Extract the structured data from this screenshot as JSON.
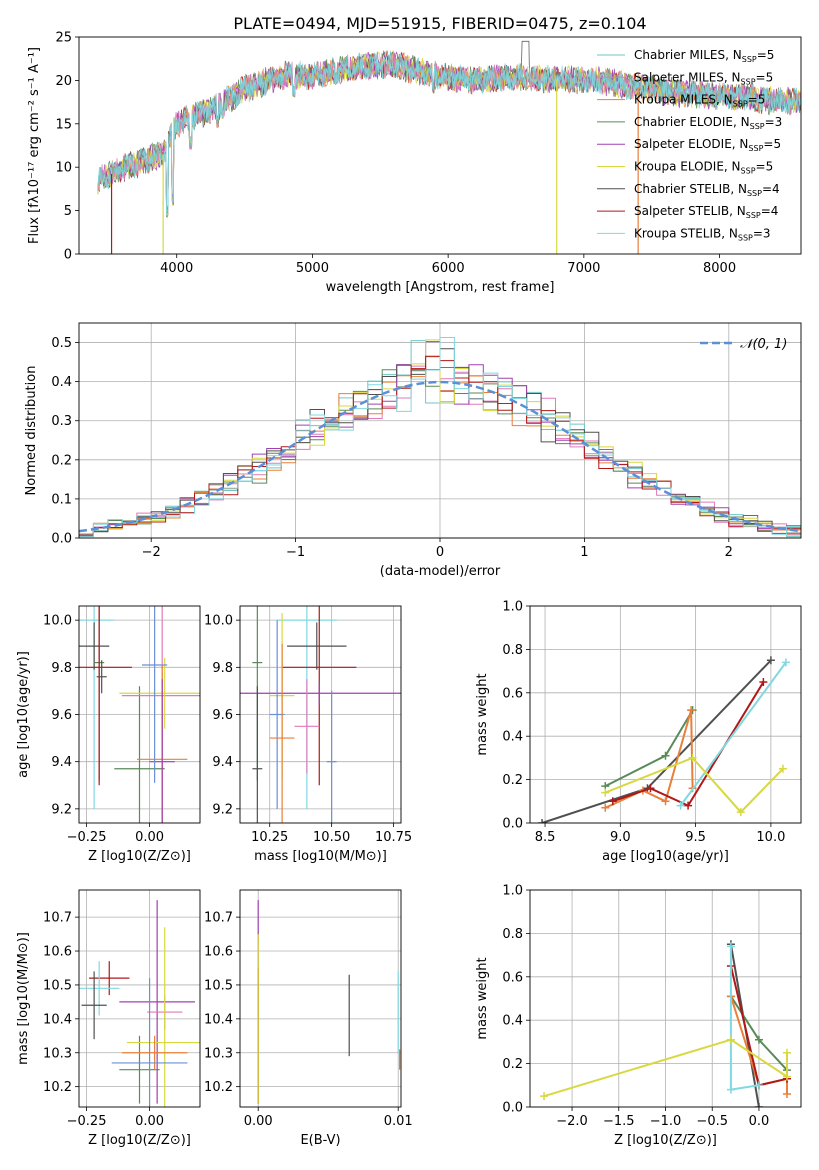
{
  "figure_title": "PLATE=0494, MJD=51915, FIBERID=0475, z=0.104",
  "colors": {
    "C1": "#6ec6c6",
    "C2": "#e07ab8",
    "C3": "#e8803a",
    "C4": "#5a8a5a",
    "C5": "#a040b0",
    "C6": "#d8d840",
    "C7": "#505050",
    "C8": "#b01818",
    "C9": "#80d8e0",
    "gauss": "#5b8fd8",
    "blue": "#6a8fd8"
  },
  "legend": [
    {
      "label": "Chabrier MILES, N",
      "sub": "SSP",
      "suffix": "=5",
      "color": "C1"
    },
    {
      "label": "Salpeter MILES, N",
      "sub": "SSP",
      "suffix": "=5",
      "color": "C2"
    },
    {
      "label": "Kroupa MILES, N",
      "sub": "SSP",
      "suffix": "=5",
      "color": "C3"
    },
    {
      "label": "Chabrier ELODIE, N",
      "sub": "SSP",
      "suffix": "=3",
      "color": "C4"
    },
    {
      "label": "Salpeter ELODIE, N",
      "sub": "SSP",
      "suffix": "=5",
      "color": "C5"
    },
    {
      "label": "Kroupa ELODIE, N",
      "sub": "SSP",
      "suffix": "=5",
      "color": "C6"
    },
    {
      "label": "Chabrier STELIB, N",
      "sub": "SSP",
      "suffix": "=4",
      "color": "C7"
    },
    {
      "label": "Salpeter STELIB, N",
      "sub": "SSP",
      "suffix": "=4",
      "color": "C8"
    },
    {
      "label": "Kroupa STELIB, N",
      "sub": "SSP",
      "suffix": "=3",
      "color": "C9"
    }
  ],
  "chart_data": [
    {
      "id": "spectrum",
      "type": "line",
      "xlabel": "wavelength [Angstrom, rest frame]",
      "ylabel": "Flux [fλ10⁻¹⁷ erg cm⁻² s⁻¹ A⁻¹]",
      "xlim": [
        3280,
        8600
      ],
      "ylim": [
        0,
        25
      ],
      "xticks": [
        4000,
        5000,
        6000,
        7000,
        8000
      ],
      "yticks": [
        0,
        5,
        10,
        15,
        20,
        25
      ],
      "grid": false,
      "legend_position": "right",
      "continuum": [
        [
          3420,
          8.5
        ],
        [
          3600,
          9.8
        ],
        [
          3900,
          11.5
        ],
        [
          4000,
          15
        ],
        [
          4300,
          17
        ],
        [
          4500,
          19
        ],
        [
          4800,
          20.6
        ],
        [
          5000,
          20.5
        ],
        [
          5300,
          21.5
        ],
        [
          5600,
          21.8
        ],
        [
          5900,
          20.6
        ],
        [
          6200,
          20
        ],
        [
          6500,
          20.4
        ],
        [
          6800,
          20.1
        ],
        [
          7100,
          20
        ],
        [
          7400,
          19.2
        ],
        [
          7700,
          18.6
        ],
        [
          8000,
          18.2
        ],
        [
          8200,
          18.1
        ],
        [
          8400,
          17.6
        ],
        [
          8600,
          17.6
        ]
      ],
      "features": [
        [
          3930,
          4.2
        ],
        [
          3970,
          5.5
        ],
        [
          4102,
          12
        ],
        [
          4300,
          14.5
        ],
        [
          4340,
          15.5
        ],
        [
          4861,
          18
        ],
        [
          5175,
          19.5
        ],
        [
          5270,
          20
        ],
        [
          5890,
          18.5
        ],
        [
          6563,
          23
        ],
        [
          6583,
          21
        ],
        [
          6717,
          21
        ]
      ],
      "dropouts": [
        {
          "x": 3520,
          "color": "C8"
        },
        {
          "x": 3900,
          "color": "C6"
        },
        {
          "x": 6800,
          "color": "C6"
        },
        {
          "x": 7400,
          "color": "C3"
        }
      ]
    },
    {
      "id": "residuals",
      "type": "step",
      "xlabel": "(data-model)/error",
      "ylabel": "Normed distribution",
      "xlim": [
        -2.5,
        2.5
      ],
      "ylim": [
        0,
        0.55
      ],
      "xticks": [
        -2,
        -1,
        0,
        1,
        2
      ],
      "yticks": [
        0,
        0.1,
        0.2,
        0.3,
        0.4,
        0.5
      ],
      "grid": true,
      "legend_position": "upper right",
      "gauss_label": "𝒩(0, 1)",
      "series_colors": [
        "C1",
        "C2",
        "C3",
        "C4",
        "C5",
        "C6",
        "C7",
        "C8",
        "C9"
      ]
    },
    {
      "id": "age-vs-Z",
      "type": "errorbar",
      "xlabel": "Z [log10(Z/Z⊙)]",
      "ylabel": "age  [log10(age/yr)]",
      "xlim": [
        -0.28,
        0.2
      ],
      "ylim": [
        9.14,
        10.06
      ],
      "xticks": [
        -0.25,
        0.0
      ],
      "yticks": [
        9.2,
        9.4,
        9.6,
        9.8,
        10.0
      ],
      "grid": true,
      "points": [
        {
          "color": "C9",
          "x": -0.22,
          "xerr": 0.08,
          "y": 10.0,
          "yerr": 0.8
        },
        {
          "color": "C7",
          "x": -0.22,
          "xerr": 0.06,
          "y": 9.89,
          "yerr": 0.1
        },
        {
          "color": "C4",
          "x": -0.2,
          "xerr": 0.02,
          "y": 9.82,
          "yerr": 0.5
        },
        {
          "color": "C8",
          "x": -0.2,
          "xerr": 0.13,
          "y": 9.8,
          "yerr": 0.5
        },
        {
          "color": "C7",
          "x": -0.19,
          "xerr": 0.02,
          "y": 9.76,
          "yerr": 0.07
        },
        {
          "color": "C4",
          "x": -0.04,
          "xerr": 0.1,
          "y": 9.37,
          "yerr": 0.35
        },
        {
          "color": "C2",
          "x": 0.05,
          "xerr": 0.16,
          "y": 9.68,
          "yerr": 0.55
        },
        {
          "color": "C6",
          "x": 0.06,
          "xerr": 0.18,
          "y": 9.69,
          "yerr": 0.15
        },
        {
          "color": "C3",
          "x": 0.05,
          "xerr": 0.1,
          "y": 9.41,
          "yerr": 0.4
        },
        {
          "color": "C5",
          "x": 0.05,
          "xerr": 0.05,
          "y": 9.4,
          "yerr": 0.35
        },
        {
          "color": "blue",
          "x": 0.02,
          "xerr": 0.05,
          "y": 9.81,
          "yerr": 0.5
        }
      ]
    },
    {
      "id": "age-vs-mass",
      "type": "errorbar",
      "xlabel": "mass [log10(M/M⊙)]",
      "ylabel": "",
      "xlim": [
        10.13,
        10.78
      ],
      "ylim": [
        9.14,
        10.06
      ],
      "xticks": [
        10.25,
        10.5,
        10.75
      ],
      "yticks": [
        9.2,
        9.4,
        9.6,
        9.8,
        10.0
      ],
      "grid": true,
      "points": [
        {
          "color": "C9",
          "x": 10.4,
          "xerr": 0.12,
          "y": 10.0,
          "yerr": 0.8
        },
        {
          "color": "C7",
          "x": 10.44,
          "xerr": 0.12,
          "y": 9.89,
          "yerr": 0.1
        },
        {
          "color": "C8",
          "x": 10.45,
          "xerr": 0.15,
          "y": 9.8,
          "yerr": 0.5
        },
        {
          "color": "C4",
          "x": 10.2,
          "xerr": 0.02,
          "y": 9.82,
          "yerr": 0.5
        },
        {
          "color": "C6",
          "x": 10.3,
          "xerr": 0.05,
          "y": 9.68,
          "yerr": 0.35
        },
        {
          "color": "C5",
          "x": 10.45,
          "xerr": 0.33,
          "y": 9.69,
          "yerr": 0.05
        },
        {
          "color": "blue",
          "x": 10.28,
          "xerr": 0.03,
          "y": 9.6,
          "yerr": 0.4
        },
        {
          "color": "C3",
          "x": 10.3,
          "xerr": 0.05,
          "y": 9.5,
          "yerr": 0.4
        },
        {
          "color": "C7",
          "x": 10.2,
          "xerr": 0.02,
          "y": 9.37,
          "yerr": 0.35
        },
        {
          "color": "C2",
          "x": 10.4,
          "xerr": 0.05,
          "y": 9.55,
          "yerr": 0.2
        },
        {
          "color": "blue",
          "x": 10.5,
          "xerr": 0.02,
          "y": 9.4,
          "yerr": 0.3
        }
      ]
    },
    {
      "id": "weight-vs-age",
      "type": "line",
      "xlabel": "age  [log10(age/yr)]",
      "ylabel": "mass weight",
      "xlim": [
        8.4,
        10.2
      ],
      "ylim": [
        0,
        1.0
      ],
      "xticks": [
        8.5,
        9.0,
        9.5,
        10.0
      ],
      "yticks": [
        0,
        0.2,
        0.4,
        0.6,
        0.8,
        1.0
      ],
      "grid": true,
      "series": [
        {
          "color": "C7",
          "points": [
            [
              8.48,
              0.0
            ],
            [
              9.18,
              0.16
            ],
            [
              10.0,
              0.75
            ]
          ]
        },
        {
          "color": "C4",
          "points": [
            [
              8.9,
              0.17
            ],
            [
              9.3,
              0.31
            ],
            [
              9.48,
              0.52
            ]
          ]
        },
        {
          "color": "C3",
          "points": [
            [
              8.9,
              0.07
            ],
            [
              9.15,
              0.15
            ],
            [
              9.3,
              0.1
            ],
            [
              9.47,
              0.52
            ],
            [
              9.48,
              0.16
            ]
          ]
        },
        {
          "color": "C8",
          "points": [
            [
              8.95,
              0.1
            ],
            [
              9.2,
              0.16
            ],
            [
              9.45,
              0.08
            ],
            [
              9.95,
              0.65
            ]
          ]
        },
        {
          "color": "C9",
          "points": [
            [
              9.4,
              0.08
            ],
            [
              10.1,
              0.74
            ]
          ]
        },
        {
          "color": "C6",
          "points": [
            [
              8.9,
              0.14
            ],
            [
              9.48,
              0.3
            ],
            [
              9.8,
              0.05
            ],
            [
              10.08,
              0.25
            ]
          ]
        }
      ]
    },
    {
      "id": "mass-vs-Z",
      "type": "errorbar",
      "xlabel": "Z [log10(Z/Z⊙)]",
      "ylabel": "mass [log10(M/M⊙)]",
      "xlim": [
        -0.28,
        0.2
      ],
      "ylim": [
        10.14,
        10.78
      ],
      "xticks": [
        -0.25,
        0.0
      ],
      "yticks": [
        10.2,
        10.3,
        10.4,
        10.5,
        10.6,
        10.7
      ],
      "grid": true,
      "points": [
        {
          "color": "C8",
          "x": -0.16,
          "xerr": 0.08,
          "y": 10.52,
          "yerr": 0.05
        },
        {
          "color": "C9",
          "x": -0.2,
          "xerr": 0.08,
          "y": 10.49,
          "yerr": 0.08
        },
        {
          "color": "C7",
          "x": -0.22,
          "xerr": 0.05,
          "y": 10.44,
          "yerr": 0.1
        },
        {
          "color": "C4",
          "x": -0.04,
          "xerr": 0.08,
          "y": 10.25,
          "yerr": 0.1
        },
        {
          "color": "C5",
          "x": 0.03,
          "xerr": 0.15,
          "y": 10.45,
          "yerr": 0.3
        },
        {
          "color": "C2",
          "x": 0.06,
          "xerr": 0.07,
          "y": 10.42,
          "yerr": 0.05
        },
        {
          "color": "C6",
          "x": 0.06,
          "xerr": 0.15,
          "y": 10.33,
          "yerr": 0.34
        },
        {
          "color": "C3",
          "x": 0.02,
          "xerr": 0.13,
          "y": 10.3,
          "yerr": 0.05
        },
        {
          "color": "blue",
          "x": 0.0,
          "xerr": 0.15,
          "y": 10.27,
          "yerr": 0.25
        }
      ]
    },
    {
      "id": "mass-vs-ebv",
      "type": "errorbar",
      "xlabel": "E(B-V)",
      "ylabel": "",
      "xlim": [
        -0.0013,
        0.0102
      ],
      "ylim": [
        10.14,
        10.78
      ],
      "xticks": [
        0.0,
        0.01
      ],
      "yticks": [
        10.2,
        10.3,
        10.4,
        10.5,
        10.6,
        10.7
      ],
      "grid": true,
      "points": [
        {
          "color": "C5",
          "x": 0.0,
          "xerr": 0.0,
          "y": 10.45,
          "yerr": 0.3
        },
        {
          "color": "C8",
          "x": 0.0,
          "xerr": 0.0,
          "y": 10.35,
          "yerr": 0.2
        },
        {
          "color": "C6",
          "x": 0.0,
          "xerr": 0.0,
          "y": 10.4,
          "yerr": 0.25
        },
        {
          "color": "C7",
          "x": 0.0065,
          "xerr": 0.0,
          "y": 10.41,
          "yerr": 0.12
        },
        {
          "color": "C9",
          "x": 0.01,
          "xerr": 0.0,
          "y": 10.42,
          "yerr": 0.12
        },
        {
          "color": "C3",
          "x": 0.0101,
          "xerr": 0.0,
          "y": 10.28,
          "yerr": 0.03
        }
      ]
    },
    {
      "id": "weight-vs-Z",
      "type": "line",
      "xlabel": "Z [log10(Z/Z⊙)]",
      "ylabel": "mass weight",
      "xlim": [
        -2.45,
        0.45
      ],
      "ylim": [
        0,
        1.0
      ],
      "xticks": [
        -2.0,
        -1.5,
        -1.0,
        -0.5,
        0.0
      ],
      "yticks": [
        0,
        0.2,
        0.4,
        0.6,
        0.8,
        1.0
      ],
      "grid": true,
      "series": [
        {
          "color": "C7",
          "points": [
            [
              -0.3,
              0.75
            ],
            [
              0.0,
              0.0
            ]
          ]
        },
        {
          "color": "C4",
          "points": [
            [
              -0.3,
              0.51
            ],
            [
              0.0,
              0.31
            ],
            [
              0.3,
              0.17
            ]
          ]
        },
        {
          "color": "C3",
          "points": [
            [
              -0.3,
              0.51
            ],
            [
              0.0,
              0.1
            ],
            [
              0.3,
              0.13
            ],
            [
              0.3,
              0.06
            ]
          ]
        },
        {
          "color": "C8",
          "points": [
            [
              -0.3,
              0.65
            ],
            [
              0.0,
              0.1
            ],
            [
              0.3,
              0.13
            ]
          ]
        },
        {
          "color": "C9",
          "points": [
            [
              -0.3,
              0.74
            ],
            [
              -0.3,
              0.08
            ],
            [
              0.0,
              0.1
            ]
          ]
        },
        {
          "color": "C6",
          "points": [
            [
              -2.3,
              0.05
            ],
            [
              -0.3,
              0.31
            ],
            [
              0.3,
              0.14
            ],
            [
              0.3,
              0.25
            ]
          ]
        }
      ]
    }
  ]
}
